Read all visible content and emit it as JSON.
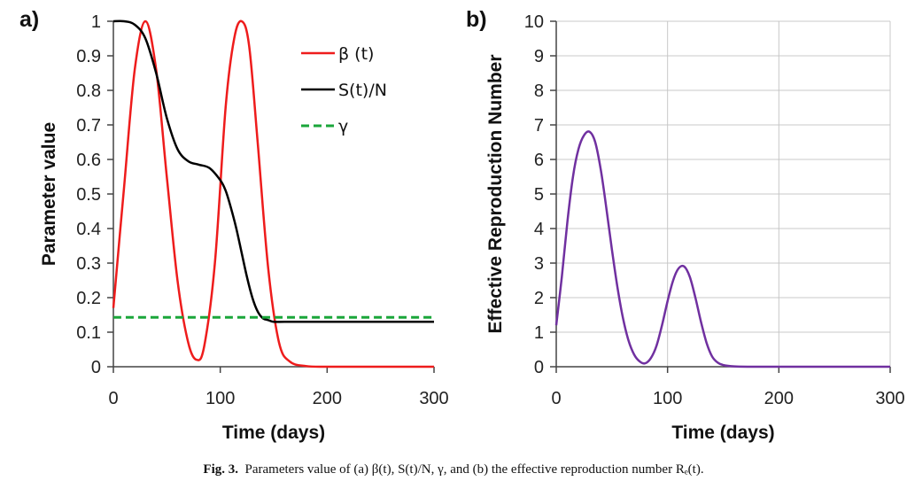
{
  "caption": {
    "label": "Fig. 3.",
    "text": "Parameters value of (a) β(t), S(t)/N, γ, and (b) the effective reproduction number Rₑ(t)."
  },
  "colors": {
    "beta": "#ee1c1c",
    "s_over_n": "#000000",
    "gamma": "#1aa63a",
    "re": "#7030a0",
    "grid": "#c8c8c8"
  },
  "chart_data": [
    {
      "panel": "a)",
      "type": "line",
      "xlabel": "Time (days)",
      "ylabel": "Parameter value",
      "xlim": [
        0,
        300
      ],
      "ylim": [
        0,
        1
      ],
      "xticks": [
        "0",
        "100",
        "200",
        "300"
      ],
      "yticks": [
        "0",
        "0.1",
        "0.2",
        "0.3",
        "0.4",
        "0.5",
        "0.6",
        "0.7",
        "0.8",
        "0.9",
        "1"
      ],
      "grid": false,
      "legend": "top-right",
      "series": [
        {
          "name": "β (t)",
          "style": "solid",
          "x": [
            0,
            10,
            20,
            30,
            40,
            50,
            60,
            70,
            78,
            85,
            95,
            105,
            113,
            120,
            127,
            135,
            145,
            155,
            165,
            180,
            200,
            250,
            300
          ],
          "y": [
            0.17,
            0.52,
            0.86,
            1.0,
            0.86,
            0.55,
            0.25,
            0.07,
            0.02,
            0.06,
            0.3,
            0.75,
            0.95,
            1.0,
            0.93,
            0.65,
            0.28,
            0.07,
            0.015,
            0.002,
            0.0,
            0.0,
            0.0
          ]
        },
        {
          "name": "S(t)/N",
          "style": "solid",
          "x": [
            0,
            10,
            20,
            30,
            40,
            50,
            60,
            70,
            80,
            90,
            100,
            105,
            110,
            115,
            120,
            125,
            130,
            135,
            140,
            145,
            150,
            160,
            180,
            200,
            300
          ],
          "y": [
            1.0,
            1.0,
            0.99,
            0.95,
            0.85,
            0.72,
            0.63,
            0.595,
            0.585,
            0.575,
            0.54,
            0.51,
            0.46,
            0.4,
            0.33,
            0.26,
            0.2,
            0.16,
            0.14,
            0.135,
            0.13,
            0.13,
            0.13,
            0.13,
            0.13
          ]
        },
        {
          "name": "γ",
          "style": "dashed",
          "x": [
            0,
            300
          ],
          "y": [
            0.143,
            0.143
          ]
        }
      ]
    },
    {
      "panel": "b)",
      "type": "line",
      "xlabel": "Time (days)",
      "ylabel": "Effective Reproduction Number",
      "xlim": [
        0,
        300
      ],
      "ylim": [
        0,
        10
      ],
      "xticks": [
        "0",
        "100",
        "200",
        "300"
      ],
      "yticks": [
        "0",
        "1",
        "2",
        "3",
        "4",
        "5",
        "6",
        "7",
        "8",
        "9",
        "10"
      ],
      "grid": true,
      "legend": "none",
      "series": [
        {
          "style": "solid",
          "x": [
            0,
            5,
            10,
            15,
            20,
            25,
            30,
            35,
            40,
            45,
            50,
            55,
            60,
            65,
            70,
            75,
            80,
            85,
            90,
            95,
            100,
            105,
            110,
            115,
            120,
            125,
            130,
            135,
            140,
            145,
            150,
            160,
            175,
            200,
            300
          ],
          "y": [
            1.2,
            2.6,
            4.2,
            5.5,
            6.3,
            6.7,
            6.8,
            6.5,
            5.7,
            4.6,
            3.4,
            2.3,
            1.4,
            0.75,
            0.35,
            0.15,
            0.1,
            0.25,
            0.6,
            1.2,
            1.9,
            2.5,
            2.85,
            2.9,
            2.6,
            2.0,
            1.3,
            0.7,
            0.3,
            0.12,
            0.05,
            0.01,
            0.0,
            0.0,
            0.0
          ]
        }
      ]
    }
  ]
}
